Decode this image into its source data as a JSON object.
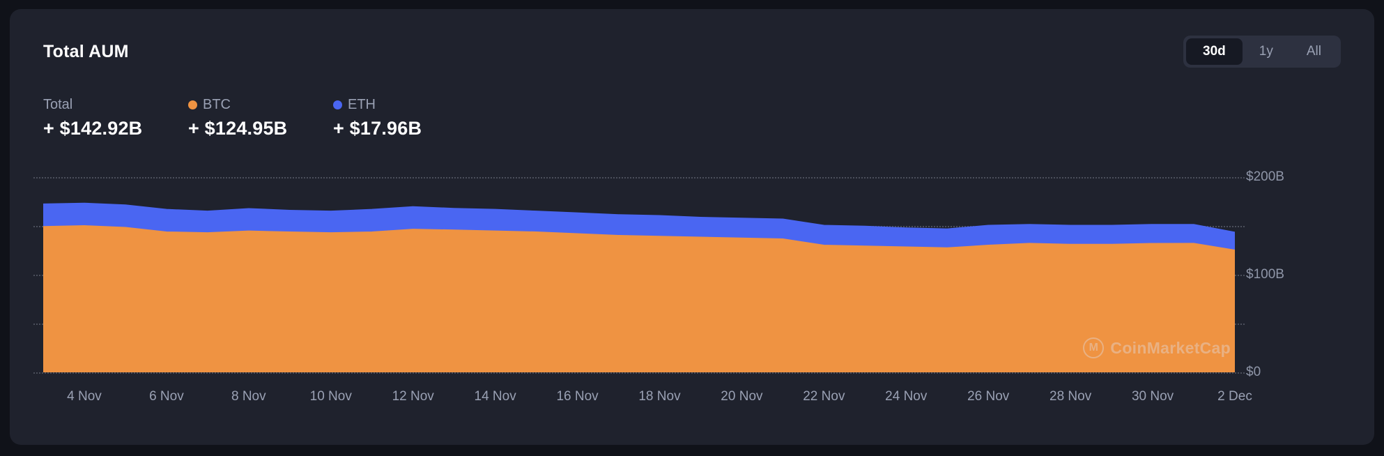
{
  "card": {
    "title": "Total AUM"
  },
  "range_toggle": {
    "options": [
      {
        "label": "30d",
        "active": true
      },
      {
        "label": "1y",
        "active": false
      },
      {
        "label": "All",
        "active": false
      }
    ]
  },
  "legend": {
    "total": {
      "label": "Total",
      "value": "+ $142.92B"
    },
    "btc": {
      "label": "BTC",
      "value": "+ $124.95B",
      "color": "#ef9342"
    },
    "eth": {
      "label": "ETH",
      "value": "+ $17.96B",
      "color": "#4a66f2"
    }
  },
  "watermark": {
    "text": "CoinMarketCap"
  },
  "chart_data": {
    "type": "area",
    "stacked": true,
    "title": "Total AUM",
    "xlabel": "",
    "ylabel": "",
    "ylim": [
      0,
      200
    ],
    "grid": "dotted-horizontal",
    "y_gridlines": [
      0,
      50,
      100,
      150,
      200
    ],
    "y_tick_labels": [
      {
        "value": 200,
        "label": "$200B"
      },
      {
        "value": 100,
        "label": "$100B"
      },
      {
        "value": 0,
        "label": "$0"
      }
    ],
    "x_tick_labels": [
      "4 Nov",
      "6 Nov",
      "8 Nov",
      "10 Nov",
      "12 Nov",
      "14 Nov",
      "16 Nov",
      "18 Nov",
      "20 Nov",
      "22 Nov",
      "24 Nov",
      "26 Nov",
      "28 Nov",
      "30 Nov",
      "2 Dec"
    ],
    "x_tick_indices": [
      1,
      3,
      5,
      7,
      9,
      11,
      13,
      15,
      17,
      19,
      21,
      23,
      25,
      27,
      29
    ],
    "series": [
      {
        "name": "BTC",
        "color": "#ef9342",
        "values": [
          149.1,
          150.0,
          148.2,
          143.6,
          142.7,
          144.5,
          143.6,
          142.7,
          143.6,
          146.4,
          145.5,
          144.5,
          143.6,
          141.8,
          140.0,
          139.1,
          138.2,
          137.3,
          136.4,
          130.0,
          129.1,
          128.2,
          127.3,
          130.0,
          131.8,
          130.9,
          130.9,
          131.8,
          131.8,
          124.95
        ]
      },
      {
        "name": "ETH",
        "color": "#4a66f2",
        "values": [
          22.7,
          22.7,
          22.7,
          22.7,
          21.8,
          22.7,
          21.8,
          21.8,
          22.7,
          22.7,
          21.8,
          21.8,
          20.9,
          20.9,
          20.9,
          20.9,
          20.0,
          20.0,
          20.0,
          20.0,
          20.0,
          19.1,
          19.1,
          20.0,
          19.1,
          19.1,
          19.1,
          19.1,
          19.1,
          17.96
        ]
      }
    ]
  }
}
